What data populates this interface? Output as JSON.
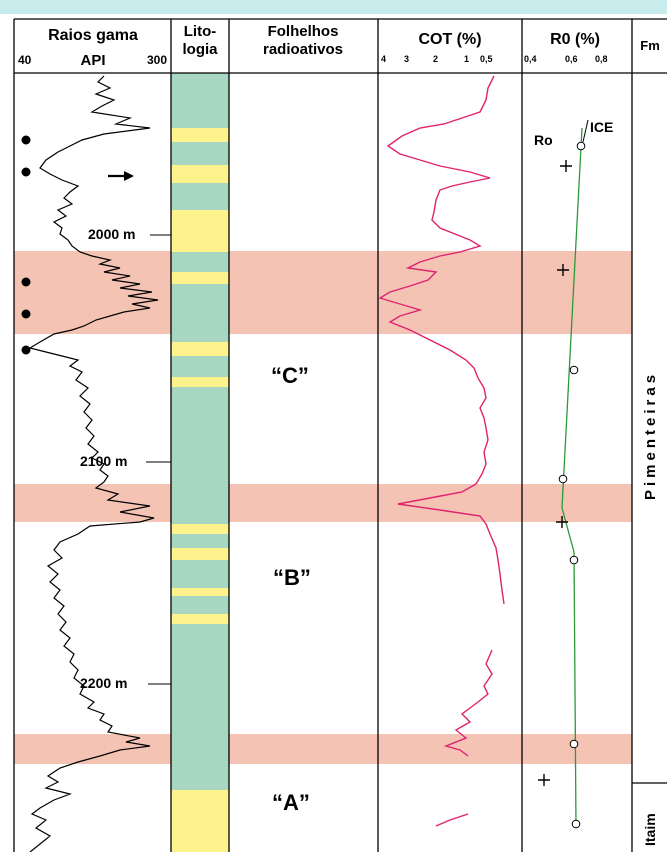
{
  "headers": {
    "gamma_title": "Raios gama",
    "gamma_min": "40",
    "gamma_unit": "API",
    "gamma_max": "300",
    "litho_line1": "Lito-",
    "litho_line2": "logia",
    "shales_line1": "Folhelhos",
    "shales_line2": "radioativos",
    "cot_title": "COT (%)",
    "cot_ticks": [
      "4",
      "3",
      "2",
      "1",
      "0,5"
    ],
    "r0_title": "R0 (%)",
    "r0_ticks": [
      "0,4",
      "0,6",
      "0,8"
    ],
    "fm_title": "Fm"
  },
  "depth_labels": [
    "2000 m",
    "2100 m",
    "2200 m"
  ],
  "shale_units": [
    "“C”",
    "“B”",
    "“A”"
  ],
  "legend_labels": {
    "ro": "Ro",
    "ice": "ICE"
  },
  "formations": {
    "upper": "Pimenteiras",
    "lower": "Itaim"
  },
  "colors": {
    "band": "#f4c3b4",
    "litho_green": "#a7d7c0",
    "litho_yellow": "#fdf28c",
    "cot_curve": "#e0226e",
    "r0_line": "#2a9a3a",
    "frame_top": "#c8ecec"
  }
}
